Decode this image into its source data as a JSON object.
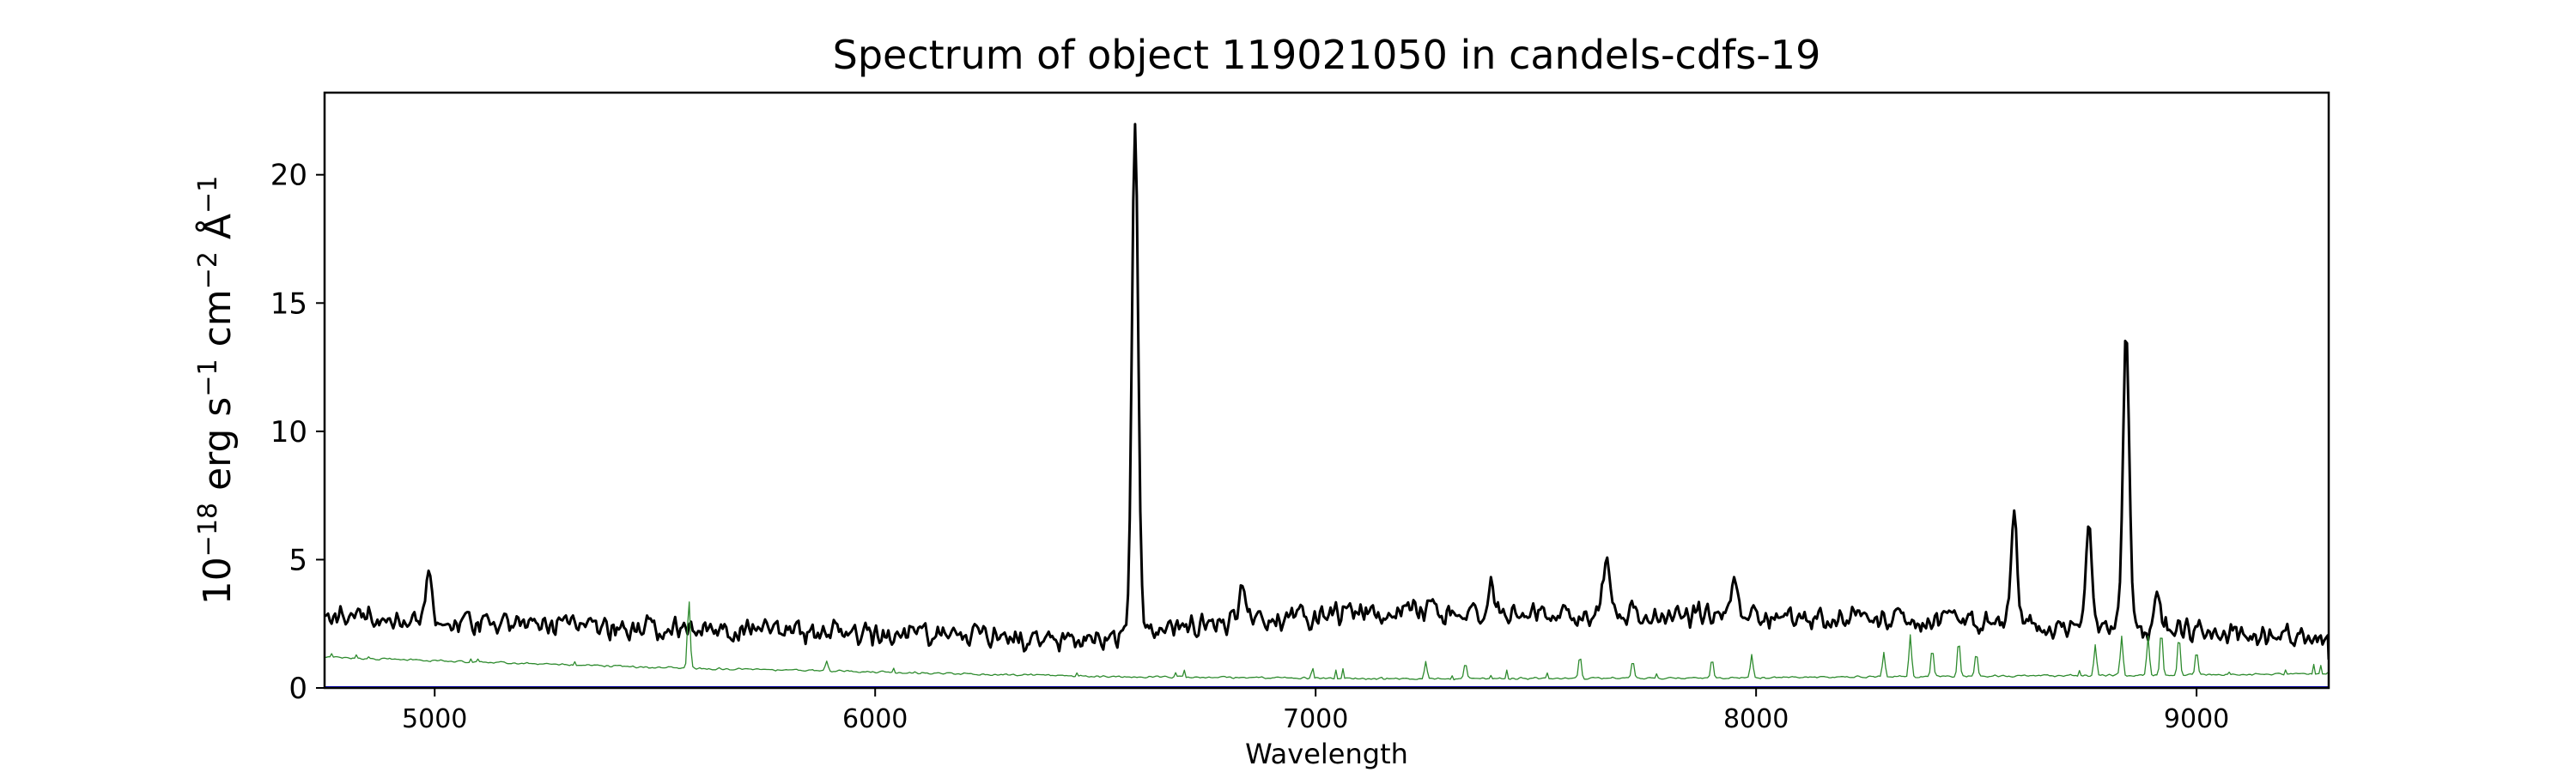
{
  "chart_data": {
    "type": "line",
    "title": "Spectrum of object 119021050 in candels-cdfs-19",
    "xlabel": "Wavelength",
    "ylabel": {
      "base": "10",
      "exp": "−18",
      "parts": [
        {
          "text": " erg s",
          "sup": "−1"
        },
        {
          "text": " cm",
          "sup": "−2"
        },
        {
          "text": " Å",
          "sup": "−1"
        }
      ]
    },
    "xlim": [
      4750,
      9300
    ],
    "ylim": [
      0,
      23.2
    ],
    "x_ticks": [
      5000,
      6000,
      7000,
      8000,
      9000
    ],
    "x_tick_labels": [
      "5000",
      "6000",
      "7000",
      "8000",
      "9000"
    ],
    "y_ticks": [
      0,
      5,
      10,
      15,
      20
    ],
    "y_tick_labels": [
      "0",
      "5",
      "10",
      "15",
      "20"
    ],
    "grid": false,
    "legend": "none",
    "series": [
      {
        "key": "flux",
        "color": "#000000",
        "continuum": [
          [
            4750,
            2.8
          ],
          [
            5000,
            2.6
          ],
          [
            5500,
            2.3
          ],
          [
            6000,
            2.1
          ],
          [
            6500,
            1.9
          ],
          [
            6800,
            2.6
          ],
          [
            7200,
            3.0
          ],
          [
            7600,
            2.9
          ],
          [
            8000,
            2.8
          ],
          [
            8400,
            2.6
          ],
          [
            8800,
            2.3
          ],
          [
            9300,
            2.1
          ]
        ],
        "noise": 0.55,
        "emission_lines": [
          {
            "x": 4985,
            "peak": 4.5
          },
          {
            "x": 6590,
            "peak": 22.1
          },
          {
            "x": 6835,
            "peak": 3.9
          },
          {
            "x": 7400,
            "peak": 4.1
          },
          {
            "x": 7660,
            "peak": 4.9
          },
          {
            "x": 7950,
            "peak": 4.0
          },
          {
            "x": 8585,
            "peak": 7.0
          },
          {
            "x": 8755,
            "peak": 6.5
          },
          {
            "x": 8840,
            "peak": 13.8
          },
          {
            "x": 8910,
            "peak": 3.8
          }
        ],
        "end_value": 1.1
      },
      {
        "key": "sky",
        "color": "#2e8b2e",
        "continuum": [
          [
            4750,
            1.2
          ],
          [
            5500,
            0.8
          ],
          [
            6500,
            0.45
          ],
          [
            7200,
            0.35
          ],
          [
            8000,
            0.4
          ],
          [
            9300,
            0.55
          ]
        ],
        "noise": 0.05,
        "emission_lines": [
          {
            "x": 5577,
            "peak": 3.5
          },
          {
            "x": 5890,
            "peak": 1.0
          },
          {
            "x": 7250,
            "peak": 1.0
          },
          {
            "x": 7340,
            "peak": 1.0
          },
          {
            "x": 7600,
            "peak": 1.3
          },
          {
            "x": 7720,
            "peak": 1.1
          },
          {
            "x": 7900,
            "peak": 1.2
          },
          {
            "x": 7990,
            "peak": 1.3
          },
          {
            "x": 8290,
            "peak": 1.4
          },
          {
            "x": 8350,
            "peak": 2.1
          },
          {
            "x": 8400,
            "peak": 1.6
          },
          {
            "x": 8460,
            "peak": 1.9
          },
          {
            "x": 8500,
            "peak": 1.4
          },
          {
            "x": 8770,
            "peak": 1.7
          },
          {
            "x": 8830,
            "peak": 2.0
          },
          {
            "x": 8890,
            "peak": 2.0
          },
          {
            "x": 8920,
            "peak": 2.3
          },
          {
            "x": 8960,
            "peak": 2.1
          },
          {
            "x": 9000,
            "peak": 1.5
          }
        ]
      },
      {
        "key": "zero",
        "color": "#0000cc",
        "value": 0.0
      }
    ]
  }
}
